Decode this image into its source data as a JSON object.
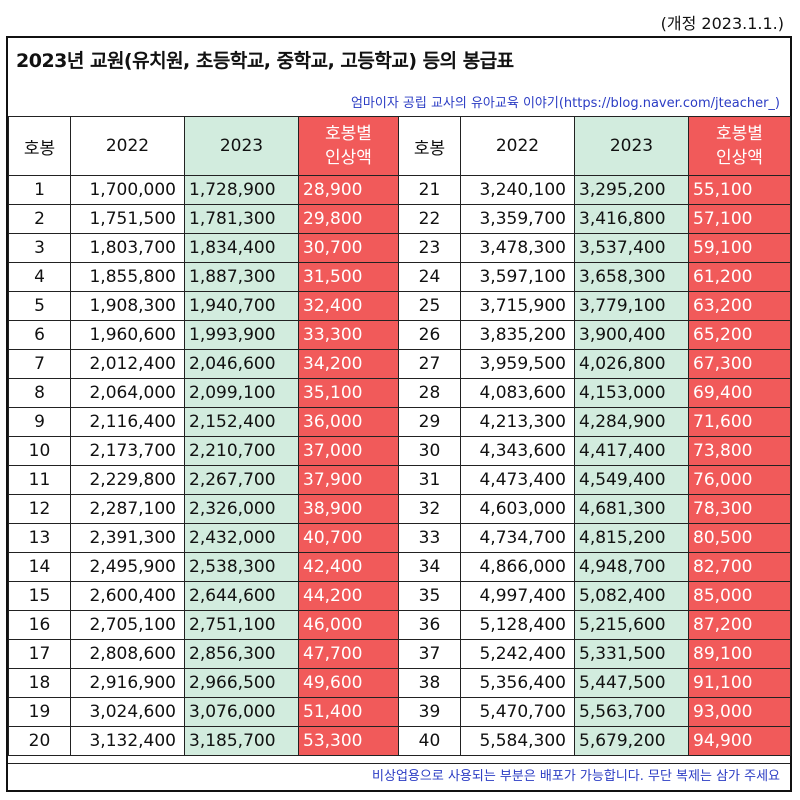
{
  "revision_note": "(개정 2023.1.1.)",
  "title": "2023년 교원(유치원, 초등학교, 중학교, 고등학교) 등의 봉급표",
  "source": "엄마이자 공립 교사의 유아교육 이야기(https://blog.naver.com/jteacher_)",
  "footer": "비상업용으로 사용되는 부분은 배포가 가능합니다. 무단 복제는 삼가 주세요",
  "headers": {
    "hobong": "호봉",
    "y2022": "2022",
    "y2023": "2023",
    "increase_line1": "호봉별",
    "increase_line2": "인상액"
  },
  "colors": {
    "green": "#d2ecde",
    "red": "#f15a5a",
    "link_blue": "#2b3cc4"
  },
  "rows": [
    {
      "a": {
        "step": "1",
        "y2022": "1,700,000",
        "y2023": "1,728,900",
        "inc": "28,900"
      },
      "b": {
        "step": "21",
        "y2022": "3,240,100",
        "y2023": "3,295,200",
        "inc": "55,100"
      }
    },
    {
      "a": {
        "step": "2",
        "y2022": "1,751,500",
        "y2023": "1,781,300",
        "inc": "29,800"
      },
      "b": {
        "step": "22",
        "y2022": "3,359,700",
        "y2023": "3,416,800",
        "inc": "57,100"
      }
    },
    {
      "a": {
        "step": "3",
        "y2022": "1,803,700",
        "y2023": "1,834,400",
        "inc": "30,700"
      },
      "b": {
        "step": "23",
        "y2022": "3,478,300",
        "y2023": "3,537,400",
        "inc": "59,100"
      }
    },
    {
      "a": {
        "step": "4",
        "y2022": "1,855,800",
        "y2023": "1,887,300",
        "inc": "31,500"
      },
      "b": {
        "step": "24",
        "y2022": "3,597,100",
        "y2023": "3,658,300",
        "inc": "61,200"
      }
    },
    {
      "a": {
        "step": "5",
        "y2022": "1,908,300",
        "y2023": "1,940,700",
        "inc": "32,400"
      },
      "b": {
        "step": "25",
        "y2022": "3,715,900",
        "y2023": "3,779,100",
        "inc": "63,200"
      }
    },
    {
      "a": {
        "step": "6",
        "y2022": "1,960,600",
        "y2023": "1,993,900",
        "inc": "33,300"
      },
      "b": {
        "step": "26",
        "y2022": "3,835,200",
        "y2023": "3,900,400",
        "inc": "65,200"
      }
    },
    {
      "a": {
        "step": "7",
        "y2022": "2,012,400",
        "y2023": "2,046,600",
        "inc": "34,200"
      },
      "b": {
        "step": "27",
        "y2022": "3,959,500",
        "y2023": "4,026,800",
        "inc": "67,300"
      }
    },
    {
      "a": {
        "step": "8",
        "y2022": "2,064,000",
        "y2023": "2,099,100",
        "inc": "35,100"
      },
      "b": {
        "step": "28",
        "y2022": "4,083,600",
        "y2023": "4,153,000",
        "inc": "69,400"
      }
    },
    {
      "a": {
        "step": "9",
        "y2022": "2,116,400",
        "y2023": "2,152,400",
        "inc": "36,000"
      },
      "b": {
        "step": "29",
        "y2022": "4,213,300",
        "y2023": "4,284,900",
        "inc": "71,600"
      }
    },
    {
      "a": {
        "step": "10",
        "y2022": "2,173,700",
        "y2023": "2,210,700",
        "inc": "37,000"
      },
      "b": {
        "step": "30",
        "y2022": "4,343,600",
        "y2023": "4,417,400",
        "inc": "73,800"
      }
    },
    {
      "a": {
        "step": "11",
        "y2022": "2,229,800",
        "y2023": "2,267,700",
        "inc": "37,900"
      },
      "b": {
        "step": "31",
        "y2022": "4,473,400",
        "y2023": "4,549,400",
        "inc": "76,000"
      }
    },
    {
      "a": {
        "step": "12",
        "y2022": "2,287,100",
        "y2023": "2,326,000",
        "inc": "38,900"
      },
      "b": {
        "step": "32",
        "y2022": "4,603,000",
        "y2023": "4,681,300",
        "inc": "78,300"
      }
    },
    {
      "a": {
        "step": "13",
        "y2022": "2,391,300",
        "y2023": "2,432,000",
        "inc": "40,700"
      },
      "b": {
        "step": "33",
        "y2022": "4,734,700",
        "y2023": "4,815,200",
        "inc": "80,500"
      }
    },
    {
      "a": {
        "step": "14",
        "y2022": "2,495,900",
        "y2023": "2,538,300",
        "inc": "42,400"
      },
      "b": {
        "step": "34",
        "y2022": "4,866,000",
        "y2023": "4,948,700",
        "inc": "82,700"
      }
    },
    {
      "a": {
        "step": "15",
        "y2022": "2,600,400",
        "y2023": "2,644,600",
        "inc": "44,200"
      },
      "b": {
        "step": "35",
        "y2022": "4,997,400",
        "y2023": "5,082,400",
        "inc": "85,000"
      }
    },
    {
      "a": {
        "step": "16",
        "y2022": "2,705,100",
        "y2023": "2,751,100",
        "inc": "46,000"
      },
      "b": {
        "step": "36",
        "y2022": "5,128,400",
        "y2023": "5,215,600",
        "inc": "87,200"
      }
    },
    {
      "a": {
        "step": "17",
        "y2022": "2,808,600",
        "y2023": "2,856,300",
        "inc": "47,700"
      },
      "b": {
        "step": "37",
        "y2022": "5,242,400",
        "y2023": "5,331,500",
        "inc": "89,100"
      }
    },
    {
      "a": {
        "step": "18",
        "y2022": "2,916,900",
        "y2023": "2,966,500",
        "inc": "49,600"
      },
      "b": {
        "step": "38",
        "y2022": "5,356,400",
        "y2023": "5,447,500",
        "inc": "91,100"
      }
    },
    {
      "a": {
        "step": "19",
        "y2022": "3,024,600",
        "y2023": "3,076,000",
        "inc": "51,400"
      },
      "b": {
        "step": "39",
        "y2022": "5,470,700",
        "y2023": "5,563,700",
        "inc": "93,000"
      }
    },
    {
      "a": {
        "step": "20",
        "y2022": "3,132,400",
        "y2023": "3,185,700",
        "inc": "53,300"
      },
      "b": {
        "step": "40",
        "y2022": "5,584,300",
        "y2023": "5,679,200",
        "inc": "94,900"
      }
    }
  ]
}
